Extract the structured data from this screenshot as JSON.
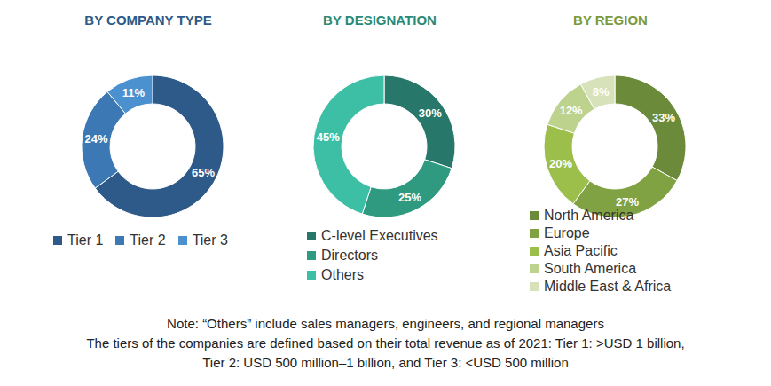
{
  "chart_data": [
    {
      "type": "pie",
      "title": "BY COMPANY TYPE",
      "categories": [
        "Tier 1",
        "Tier 2",
        "Tier 3"
      ],
      "values": [
        65,
        24,
        11
      ],
      "value_labels": [
        "65%",
        "24%",
        "11%"
      ],
      "colors": [
        "#2d5a88",
        "#3b78b4",
        "#4b90cf"
      ],
      "data_labels": true,
      "legend": "bottom"
    },
    {
      "type": "pie",
      "title": "BY DESIGNATION",
      "categories": [
        "C-level Executives",
        "Directors",
        "Others"
      ],
      "values": [
        30,
        25,
        45
      ],
      "value_labels": [
        "30%",
        "25%",
        "45%"
      ],
      "colors": [
        "#27786a",
        "#2f9a80",
        "#3dbfa6"
      ],
      "data_labels": true,
      "legend": "bottom"
    },
    {
      "type": "pie",
      "title": "BY REGION",
      "categories": [
        "North America",
        "Europe",
        "Asia Pacific",
        "South America",
        "Middle East & Africa"
      ],
      "values": [
        33,
        27,
        20,
        12,
        8
      ],
      "value_labels": [
        "33%",
        "27%",
        "20%",
        "12%",
        "8%"
      ],
      "colors": [
        "#6b8a3a",
        "#80a242",
        "#9cbf4c",
        "#bdd28c",
        "#d7e2bb"
      ],
      "data_labels": true,
      "legend": "bottom"
    }
  ],
  "notes": [
    "Note: “Others” include sales managers, engineers, and regional managers",
    "The tiers of the companies are defined based on their total revenue as of 2021: Tier 1: >USD 1 billion,",
    "Tier 2: USD 500 million–1 billion, and Tier 3: <USD 500 million"
  ]
}
